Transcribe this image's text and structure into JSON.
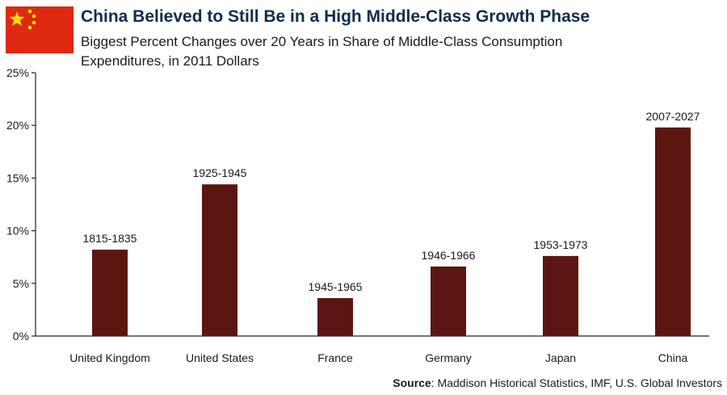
{
  "header": {
    "title": "China Believed to Still Be in a High Middle-Class Growth Phase",
    "subtitle": "Biggest Percent Changes over 20 Years in Share of Middle-Class Consumption Expenditures, in 2011 Dollars"
  },
  "source": {
    "label": "Source",
    "text": ": Maddison Historical Statistics, IMF, U.S. Global Investors"
  },
  "colors": {
    "bar": "#5c1611",
    "title": "#0f2d4e",
    "flag_red": "#de2910",
    "flag_star": "#ffde00"
  },
  "chart_data": {
    "type": "bar",
    "categories": [
      "United Kingdom",
      "United States",
      "France",
      "Germany",
      "Japan",
      "China"
    ],
    "values": [
      8.2,
      14.4,
      3.6,
      6.6,
      7.6,
      19.8
    ],
    "data_labels": [
      "1815-1835",
      "1925-1945",
      "1945-1965",
      "1946-1966",
      "1953-1973",
      "2007-2027"
    ],
    "yticks": [
      "0%",
      "5%",
      "10%",
      "15%",
      "20%",
      "25%"
    ],
    "ylim": [
      0,
      25
    ],
    "title": "China Believed to Still Be in a High Middle-Class Growth Phase",
    "xlabel": "",
    "ylabel": "",
    "grid": false,
    "legend": "none"
  }
}
